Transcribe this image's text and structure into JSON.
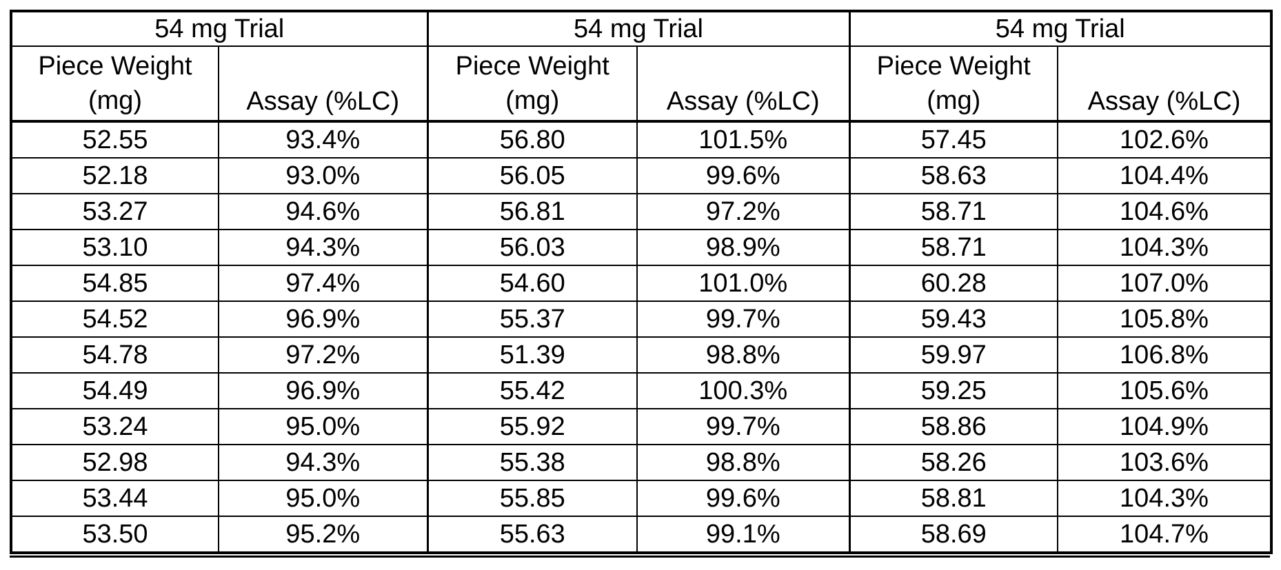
{
  "groups": [
    {
      "title": "54 mg Trial"
    },
    {
      "title": "54 mg Trial"
    },
    {
      "title": "54 mg Trial"
    }
  ],
  "subheaders": {
    "piece_weight_line1": "Piece Weight",
    "piece_weight_line2": "(mg)",
    "assay": "Assay (%LC)"
  },
  "rows": [
    [
      "52.55",
      "93.4%",
      "56.80",
      "101.5%",
      "57.45",
      "102.6%"
    ],
    [
      "52.18",
      "93.0%",
      "56.05",
      "99.6%",
      "58.63",
      "104.4%"
    ],
    [
      "53.27",
      "94.6%",
      "56.81",
      "97.2%",
      "58.71",
      "104.6%"
    ],
    [
      "53.10",
      "94.3%",
      "56.03",
      "98.9%",
      "58.71",
      "104.3%"
    ],
    [
      "54.85",
      "97.4%",
      "54.60",
      "101.0%",
      "60.28",
      "107.0%"
    ],
    [
      "54.52",
      "96.9%",
      "55.37",
      "99.7%",
      "59.43",
      "105.8%"
    ],
    [
      "54.78",
      "97.2%",
      "51.39",
      "98.8%",
      "59.97",
      "106.8%"
    ],
    [
      "54.49",
      "96.9%",
      "55.42",
      "100.3%",
      "59.25",
      "105.6%"
    ],
    [
      "53.24",
      "95.0%",
      "55.92",
      "99.7%",
      "58.86",
      "104.9%"
    ],
    [
      "52.98",
      "94.3%",
      "55.38",
      "98.8%",
      "58.26",
      "103.6%"
    ],
    [
      "53.44",
      "95.0%",
      "55.85",
      "99.6%",
      "58.81",
      "104.3%"
    ],
    [
      "53.50",
      "95.2%",
      "55.63",
      "99.1%",
      "58.69",
      "104.7%"
    ]
  ]
}
